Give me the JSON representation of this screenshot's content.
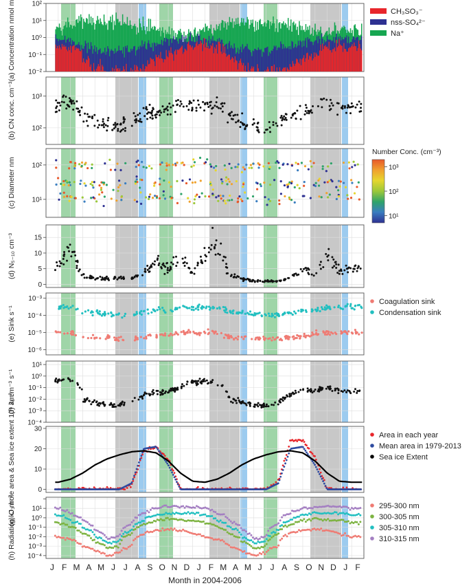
{
  "figure": {
    "xaxis_title": "Month in 2004-2006",
    "month_ticks": [
      "J",
      "F",
      "M",
      "A",
      "M",
      "J",
      "J",
      "A",
      "S",
      "O",
      "N",
      "D",
      "J",
      "F",
      "M",
      "A",
      "M",
      "J",
      "J",
      "A",
      "S",
      "O",
      "N",
      "D",
      "J",
      "F"
    ],
    "colors": {
      "green_band": "#9fd5a8",
      "gray_band": "#c8c8c8",
      "blue_band": "#9ccbef",
      "grid": "#dddddd"
    }
  },
  "chart_data": [
    {
      "id": "a",
      "type": "bar",
      "ylabel": "(a) Concentration nmol m⁻³",
      "scale": "log",
      "ylim": [
        0.01,
        100
      ],
      "yticks": [
        "10⁻²",
        "10⁻¹",
        "10⁰",
        "10¹",
        "10²"
      ],
      "legend": [
        "CH₃SO₃⁻",
        "nss-SO₄²⁻",
        "Na⁺"
      ],
      "series": [
        {
          "name": "CH₃SO₃⁻",
          "color": "#e8262b",
          "monthly_typical": [
            0.3,
            0.3,
            0.3,
            0.05,
            0.02,
            0.01,
            0.01,
            0.01,
            0.02,
            0.05,
            0.1,
            0.2,
            0.3,
            0.3,
            0.3,
            0.05,
            0.02,
            0.01,
            0.01,
            0.01,
            0.02,
            0.05,
            0.1,
            0.2,
            0.3,
            0.3
          ]
        },
        {
          "name": "nss-SO₄²⁻",
          "color": "#2e3192",
          "monthly_typical": [
            0.8,
            0.8,
            0.6,
            0.3,
            0.2,
            0.15,
            0.15,
            0.2,
            0.3,
            0.4,
            0.6,
            0.8,
            0.8,
            0.8,
            0.6,
            0.3,
            0.2,
            0.15,
            0.15,
            0.2,
            0.3,
            0.4,
            0.6,
            0.8,
            0.8,
            0.8
          ]
        },
        {
          "name": "Na⁺",
          "color": "#16a651",
          "monthly_typical": [
            2,
            3,
            5,
            10,
            10,
            8,
            8,
            8,
            5,
            3,
            2,
            2,
            2,
            3,
            5,
            10,
            10,
            8,
            8,
            8,
            5,
            3,
            2,
            2,
            2,
            3
          ]
        }
      ]
    },
    {
      "id": "b",
      "type": "scatter",
      "ylabel": "(b) CN conc. cm⁻³",
      "scale": "log",
      "ylim": [
        30,
        4000
      ],
      "yticks": [
        "10²",
        "10³"
      ],
      "monthly_typical": [
        500,
        500,
        600,
        250,
        150,
        120,
        100,
        150,
        250,
        300,
        400,
        600,
        500,
        500,
        450,
        250,
        150,
        120,
        100,
        150,
        250,
        300,
        400,
        600,
        500,
        400
      ]
    },
    {
      "id": "c",
      "type": "scatter",
      "ylabel": "(c) Diameter nm",
      "scale": "log",
      "ylim": [
        3,
        300
      ],
      "yticks": [
        "10¹",
        "10²"
      ],
      "colorbar": {
        "title": "Number Conc. (cm⁻³)",
        "ticks": [
          "10¹",
          "10²",
          "10³"
        ]
      },
      "modes": [
        {
          "name": "mode1",
          "monthly_typical": [
            100,
            100,
            100,
            100,
            100,
            100,
            100,
            100,
            100,
            100,
            100,
            100,
            100,
            100,
            100,
            100,
            100,
            100,
            100,
            100,
            100,
            100,
            100,
            100,
            100,
            100
          ]
        },
        {
          "name": "mode2",
          "monthly_typical": [
            30,
            30,
            30,
            30,
            25,
            25,
            25,
            30,
            30,
            30,
            30,
            30,
            30,
            30,
            30,
            30,
            25,
            25,
            25,
            30,
            30,
            30,
            30,
            30,
            30,
            30
          ]
        },
        {
          "name": "mode3",
          "monthly_typical": [
            12,
            12,
            12,
            10,
            10,
            10,
            10,
            10,
            10,
            12,
            12,
            12,
            12,
            12,
            12,
            10,
            10,
            10,
            10,
            10,
            10,
            12,
            12,
            12,
            12,
            12
          ]
        }
      ]
    },
    {
      "id": "d",
      "type": "scatter",
      "ylabel": "(d) N₅₋₁₀ cm⁻³",
      "scale": "linear",
      "ylim": [
        -1,
        19
      ],
      "yticks": [
        "0",
        "5",
        "10",
        "15"
      ],
      "monthly_typical": [
        3,
        6,
        12,
        3,
        2,
        2,
        2,
        2,
        4,
        7,
        5,
        10,
        3,
        10,
        15,
        3,
        2,
        1,
        1,
        1,
        2,
        5,
        3,
        10,
        4,
        5
      ]
    },
    {
      "id": "e",
      "type": "scatter",
      "ylabel": "(e) Sink s⁻¹",
      "scale": "log",
      "ylim": [
        5e-07,
        0.002
      ],
      "yticks": [
        "10⁻⁶",
        "10⁻⁵",
        "10⁻⁴",
        "10⁻³"
      ],
      "legend": [
        "Coagulation sink",
        "Condensation sink"
      ],
      "series": [
        {
          "name": "Coagulation sink",
          "color": "#ef7b73",
          "monthly_typical": [
            1e-05,
            1e-05,
            1e-05,
            5e-06,
            5e-06,
            5e-06,
            4e-06,
            4e-06,
            5e-06,
            6e-06,
            8e-06,
            1e-05,
            1e-05,
            1e-05,
            1e-05,
            5e-06,
            5e-06,
            5e-06,
            4e-06,
            4e-06,
            5e-06,
            6e-06,
            8e-06,
            1e-05,
            1e-05,
            1e-05
          ]
        },
        {
          "name": "Condensation sink",
          "color": "#22bfc0",
          "monthly_typical": [
            0.0003,
            0.0003,
            0.0003,
            0.00015,
            0.00015,
            0.00012,
            0.0001,
            0.0001,
            0.00015,
            0.0002,
            0.0002,
            0.0003,
            0.0003,
            0.0003,
            0.0003,
            0.00015,
            0.00015,
            0.00012,
            0.0001,
            0.0001,
            0.00015,
            0.0002,
            0.0002,
            0.0003,
            0.0003,
            0.0003
          ]
        }
      ]
    },
    {
      "id": "f",
      "type": "scatter",
      "ylabel": "(f) J₅ cm⁻³ s⁻¹",
      "scale": "log",
      "ylim": [
        0.0001,
        20
      ],
      "yticks": [
        "10⁻⁴",
        "10⁻³",
        "10⁻²",
        "10⁻¹",
        "10⁰",
        "10¹"
      ],
      "monthly_typical": [
        0.3,
        0.4,
        0.5,
        0.01,
        0.005,
        0.003,
        0.003,
        0.005,
        0.02,
        0.05,
        0.05,
        0.1,
        0.3,
        0.4,
        0.2,
        0.01,
        0.005,
        0.003,
        0.003,
        0.005,
        0.02,
        0.05,
        0.05,
        0.1,
        0.05,
        0.05
      ]
    },
    {
      "id": "g",
      "type": "line",
      "ylabel": "(g) O₃ hole area & Sea ice extent 10⁶ km²",
      "scale": "linear",
      "ylim": [
        -1.5,
        31
      ],
      "yticks": [
        "0",
        "10",
        "20",
        "30"
      ],
      "legend": [
        "Area in each year",
        "Mean area in 1979-2013",
        "Sea ice Extent"
      ],
      "series": [
        {
          "name": "Area in each year",
          "color": "#e8262b",
          "monthly": [
            0,
            0,
            0,
            0,
            0,
            0,
            0,
            2,
            19,
            21,
            15,
            0,
            0,
            0,
            0,
            0,
            0,
            0,
            0,
            4,
            24,
            24,
            16,
            0,
            0,
            0
          ]
        },
        {
          "name": "Mean area in 1979-2013",
          "color": "#2e4ba0",
          "monthly": [
            0,
            0,
            0,
            0,
            0,
            0,
            0,
            3,
            20,
            21,
            12,
            0,
            0,
            0,
            0,
            0,
            0,
            0,
            0,
            3,
            20,
            21,
            12,
            0,
            0,
            0
          ]
        },
        {
          "name": "Sea ice Extent",
          "color": "#000000",
          "monthly": [
            3.5,
            3.5,
            5,
            8,
            12,
            15,
            17,
            18.5,
            19,
            18,
            14,
            8,
            4,
            3.5,
            5,
            8,
            12,
            15,
            17,
            18.5,
            19,
            18,
            14,
            8,
            4,
            3.5
          ]
        }
      ]
    },
    {
      "id": "h",
      "type": "scatter",
      "ylabel": "(h) Radiation kJ m⁻²",
      "scale": "log",
      "ylim": [
        5e-05,
        150
      ],
      "yticks": [
        "10⁻⁴",
        "10⁻³",
        "10⁻²",
        "10⁻¹",
        "10⁰",
        "10¹"
      ],
      "legend": [
        "295-300 nm",
        "300-305 nm",
        "305-310 nm",
        "310-315 nm"
      ],
      "series": [
        {
          "name": "295-300 nm",
          "color": "#ef7b73",
          "monthly": [
            0.02,
            0.01,
            0.005,
            0.001,
            0.0003,
            0.0001,
            0.0002,
            0.001,
            0.02,
            0.05,
            0.06,
            0.05,
            0.02,
            0.01,
            0.005,
            0.001,
            0.0003,
            0.0001,
            0.0002,
            0.001,
            0.02,
            0.05,
            0.06,
            0.05,
            0.02,
            0.01
          ]
        },
        {
          "name": "300-305 nm",
          "color": "#7db341",
          "monthly": [
            0.5,
            0.3,
            0.1,
            0.02,
            0.003,
            0.0005,
            0.001,
            0.02,
            0.2,
            0.5,
            0.8,
            0.6,
            0.5,
            0.3,
            0.1,
            0.02,
            0.003,
            0.0005,
            0.001,
            0.02,
            0.2,
            0.5,
            0.8,
            0.6,
            0.5,
            0.3
          ]
        },
        {
          "name": "305-310 nm",
          "color": "#22bfc0",
          "monthly": [
            3,
            2,
            0.5,
            0.1,
            0.01,
            0.002,
            0.003,
            0.05,
            0.5,
            2,
            3,
            3,
            3,
            2,
            0.5,
            0.1,
            0.01,
            0.002,
            0.003,
            0.05,
            0.5,
            2,
            3,
            3,
            3,
            2
          ]
        },
        {
          "name": "310-315 nm",
          "color": "#a47fc2",
          "monthly": [
            15,
            10,
            3,
            0.5,
            0.05,
            0.005,
            0.01,
            0.2,
            3,
            10,
            15,
            15,
            15,
            10,
            3,
            0.5,
            0.05,
            0.005,
            0.01,
            0.2,
            3,
            10,
            15,
            15,
            15,
            10
          ]
        }
      ]
    }
  ]
}
